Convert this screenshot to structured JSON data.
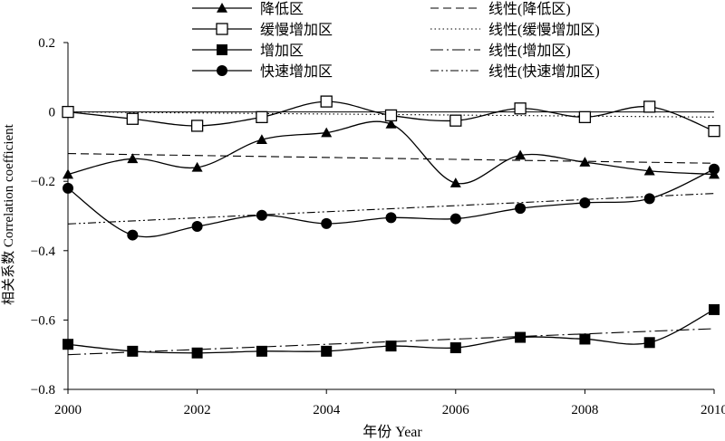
{
  "chart_data": {
    "type": "line",
    "xlabel": "年份 Year",
    "ylabel": "相关系数 Correlation coefficient",
    "xlim": [
      2000,
      2010
    ],
    "ylim": [
      -0.8,
      0.2
    ],
    "x_ticks": [
      2000,
      2002,
      2004,
      2006,
      2008,
      2010
    ],
    "x_tick_labels": [
      "2000",
      "2002",
      "2004",
      "2006",
      "2008",
      "2010"
    ],
    "y_ticks": [
      0.2,
      0,
      -0.2,
      -0.4,
      -0.6,
      -0.8
    ],
    "y_tick_labels": [
      "0.2",
      "0",
      "−0.2",
      "−0.4",
      "−0.6",
      "−0.8"
    ],
    "grid": false,
    "legend_placement": "top",
    "x": [
      2000,
      2001,
      2002,
      2003,
      2004,
      2005,
      2006,
      2007,
      2008,
      2009,
      2010
    ],
    "series": [
      {
        "name": "降低区",
        "marker": "triangle-filled",
        "values": [
          -0.18,
          -0.135,
          -0.16,
          -0.08,
          -0.06,
          -0.035,
          -0.205,
          -0.125,
          -0.145,
          -0.17,
          -0.18
        ],
        "trend": {
          "name": "线性(降低区)",
          "style": "dashed",
          "start": -0.12,
          "end": -0.148
        }
      },
      {
        "name": "缓慢增加区",
        "marker": "square-open",
        "values": [
          0.0,
          -0.02,
          -0.04,
          -0.015,
          0.03,
          -0.01,
          -0.025,
          0.01,
          -0.015,
          0.015,
          -0.055
        ],
        "trend": {
          "name": "线性(缓慢增加区)",
          "style": "dotted",
          "start": 0.0,
          "end": -0.015
        }
      },
      {
        "name": "增加区",
        "marker": "square-filled",
        "values": [
          -0.67,
          -0.69,
          -0.695,
          -0.69,
          -0.69,
          -0.675,
          -0.68,
          -0.65,
          -0.655,
          -0.665,
          -0.57
        ],
        "trend": {
          "name": "线性(增加区)",
          "style": "dash-dot",
          "start": -0.7,
          "end": -0.625
        }
      },
      {
        "name": "快速增加区",
        "marker": "circle-filled",
        "values": [
          -0.22,
          -0.355,
          -0.33,
          -0.298,
          -0.322,
          -0.305,
          -0.308,
          -0.278,
          -0.262,
          -0.25,
          -0.165
        ],
        "trend": {
          "name": "线性(快速增加区)",
          "style": "dash-dot-dot",
          "start": -0.323,
          "end": -0.235
        }
      }
    ]
  }
}
